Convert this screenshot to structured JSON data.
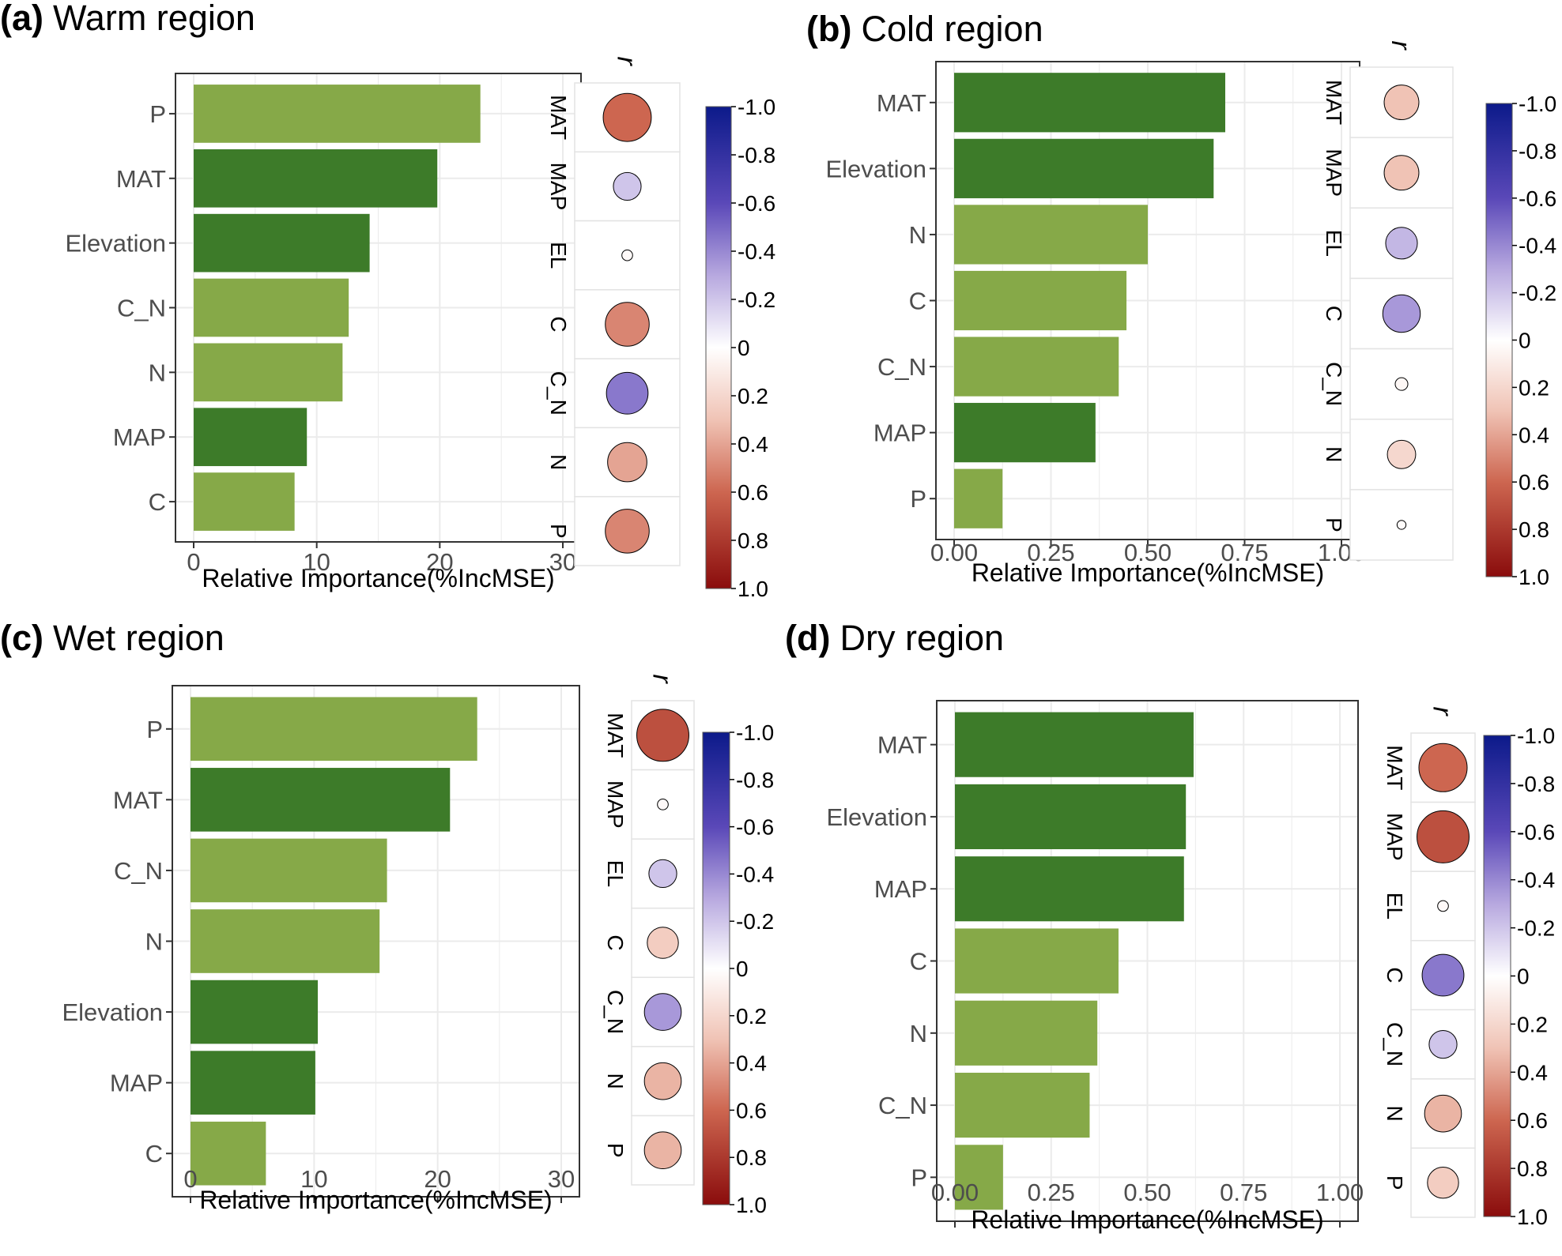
{
  "figure": {
    "width": 1976,
    "height": 1590
  },
  "colors": {
    "bar_light": "#86a948",
    "bar_dark": "#3d7b29",
    "grid": "#ebebeb",
    "frame": "#333333",
    "tick_text": "#4d4d4d",
    "neg_end": "#0c1a8a",
    "neg_mid": "#5a48b8",
    "neg_light": "#b7a8df",
    "zero": "#ffffff",
    "pos_light": "#f0c3b5",
    "pos_mid": "#cd6650",
    "pos_end": "#8a0c0c"
  },
  "colorbar": {
    "ticks": [
      "-1.0",
      "-0.8",
      "-0.6",
      "-0.4",
      "-0.2",
      "0",
      "0.2",
      "0.4",
      "0.6",
      "0.8",
      "1.0"
    ],
    "values": [
      -1.0,
      -0.8,
      -0.6,
      -0.4,
      -0.2,
      0,
      0.2,
      0.4,
      0.6,
      0.8,
      1.0
    ]
  },
  "chart_data": [
    {
      "type": "bar",
      "orientation": "horizontal",
      "panel": "(a)",
      "title": "Warm region",
      "xlabel": "Relative Importance(%IncMSE)",
      "ylabel": "",
      "xlim": [
        0,
        30
      ],
      "xticks": [
        0,
        10,
        20,
        30
      ],
      "xtick_labels": [
        "0",
        "10",
        "20",
        "30"
      ],
      "categories": [
        "P",
        "MAT",
        "Elevation",
        "C_N",
        "N",
        "MAP",
        "C"
      ],
      "values": [
        23.3,
        19.8,
        14.3,
        12.6,
        12.1,
        9.2,
        8.2
      ],
      "bar_shade": [
        "light",
        "dark",
        "dark",
        "light",
        "light",
        "dark",
        "light"
      ],
      "correlation": {
        "label": "r",
        "variables": [
          "MAT",
          "MAP",
          "EL",
          "C",
          "C_N",
          "N",
          "P"
        ],
        "values": [
          0.6,
          -0.2,
          0.03,
          0.5,
          -0.45,
          0.4,
          0.5
        ]
      }
    },
    {
      "type": "bar",
      "orientation": "horizontal",
      "panel": "(b)",
      "title": "Cold region",
      "xlabel": "Relative Importance(%IncMSE)",
      "ylabel": "",
      "xlim": [
        0,
        1.0
      ],
      "xticks": [
        0,
        0.25,
        0.5,
        0.75,
        1.0
      ],
      "xtick_labels": [
        "0.00",
        "0.25",
        "0.50",
        "0.75",
        "1.00"
      ],
      "categories": [
        "MAT",
        "Elevation",
        "N",
        "C",
        "C_N",
        "MAP",
        "P"
      ],
      "values": [
        0.7,
        0.67,
        0.5,
        0.445,
        0.425,
        0.365,
        0.125
      ],
      "bar_shade": [
        "dark",
        "dark",
        "light",
        "light",
        "light",
        "dark",
        "light"
      ],
      "correlation": {
        "label": "r",
        "variables": [
          "MAT",
          "MAP",
          "EL",
          "C",
          "C_N",
          "N",
          "P"
        ],
        "values": [
          0.3,
          0.3,
          -0.25,
          -0.35,
          0.04,
          0.2,
          0.02
        ]
      }
    },
    {
      "type": "bar",
      "orientation": "horizontal",
      "panel": "(c)",
      "title": "Wet region",
      "xlabel": "Relative Importance(%IncMSE)",
      "ylabel": "",
      "xlim": [
        0,
        30
      ],
      "xticks": [
        0,
        10,
        20,
        30
      ],
      "xtick_labels": [
        "0",
        "10",
        "20",
        "30"
      ],
      "categories": [
        "P",
        "MAT",
        "C_N",
        "N",
        "Elevation",
        "MAP",
        "C"
      ],
      "values": [
        23.2,
        21.0,
        15.9,
        15.3,
        10.3,
        10.1,
        6.1
      ],
      "bar_shade": [
        "light",
        "dark",
        "light",
        "light",
        "dark",
        "dark",
        "light"
      ],
      "correlation": {
        "label": "r",
        "variables": [
          "MAT",
          "MAP",
          "EL",
          "C",
          "C_N",
          "N",
          "P"
        ],
        "values": [
          0.7,
          0.03,
          -0.2,
          0.25,
          -0.35,
          0.35,
          0.35
        ]
      }
    },
    {
      "type": "bar",
      "orientation": "horizontal",
      "panel": "(d)",
      "title": "Dry region",
      "xlabel": "Relative Importance(%IncMSE)",
      "ylabel": "",
      "xlim": [
        0,
        1.0
      ],
      "xticks": [
        0,
        0.25,
        0.5,
        0.75,
        1.0
      ],
      "xtick_labels": [
        "0.00",
        "0.25",
        "0.50",
        "0.75",
        "1.00"
      ],
      "categories": [
        "MAT",
        "Elevation",
        "MAP",
        "C",
        "N",
        "C_N",
        "P"
      ],
      "values": [
        0.62,
        0.6,
        0.595,
        0.425,
        0.37,
        0.35,
        0.125
      ],
      "bar_shade": [
        "dark",
        "dark",
        "dark",
        "light",
        "light",
        "light",
        "light"
      ],
      "correlation": {
        "label": "r",
        "variables": [
          "MAT",
          "MAP",
          "EL",
          "C",
          "C_N",
          "N",
          "P"
        ],
        "values": [
          0.6,
          0.7,
          0.03,
          -0.45,
          -0.2,
          0.35,
          0.25
        ]
      }
    }
  ]
}
